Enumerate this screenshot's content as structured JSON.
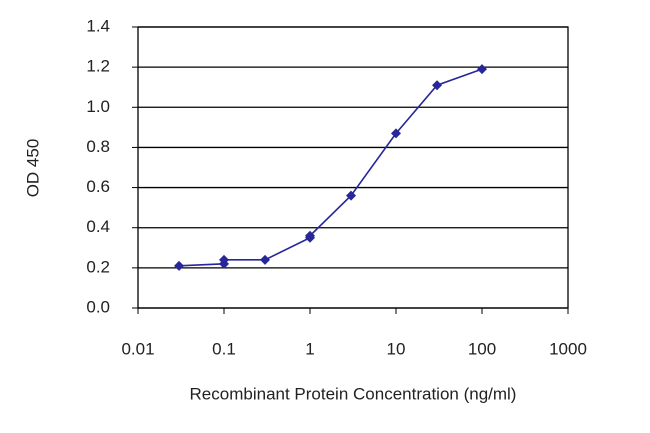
{
  "chart_data": {
    "type": "line",
    "xlabel": "Recombinant Protein Concentration (ng/ml)",
    "ylabel": "OD 450",
    "x": [
      0.03,
      0.1,
      0.1,
      0.3,
      1,
      1,
      3,
      10,
      30,
      100
    ],
    "series": [
      {
        "color": "#27279a",
        "values": [
          0.21,
          0.22,
          0.24,
          0.24,
          0.35,
          0.36,
          0.56,
          0.87,
          1.11,
          1.19
        ]
      }
    ],
    "xscale": "log",
    "xlim": [
      0.01,
      1000
    ],
    "xticks": [
      0.01,
      0.1,
      1,
      10,
      100,
      1000
    ],
    "ylim": [
      0,
      1.4
    ],
    "yticks": [
      {
        "value": 0,
        "label": "0.0"
      },
      0.2,
      0.4,
      0.6,
      0.8,
      {
        "value": 1,
        "label": "1.0"
      },
      1.2,
      1.4
    ],
    "grid": true
  }
}
